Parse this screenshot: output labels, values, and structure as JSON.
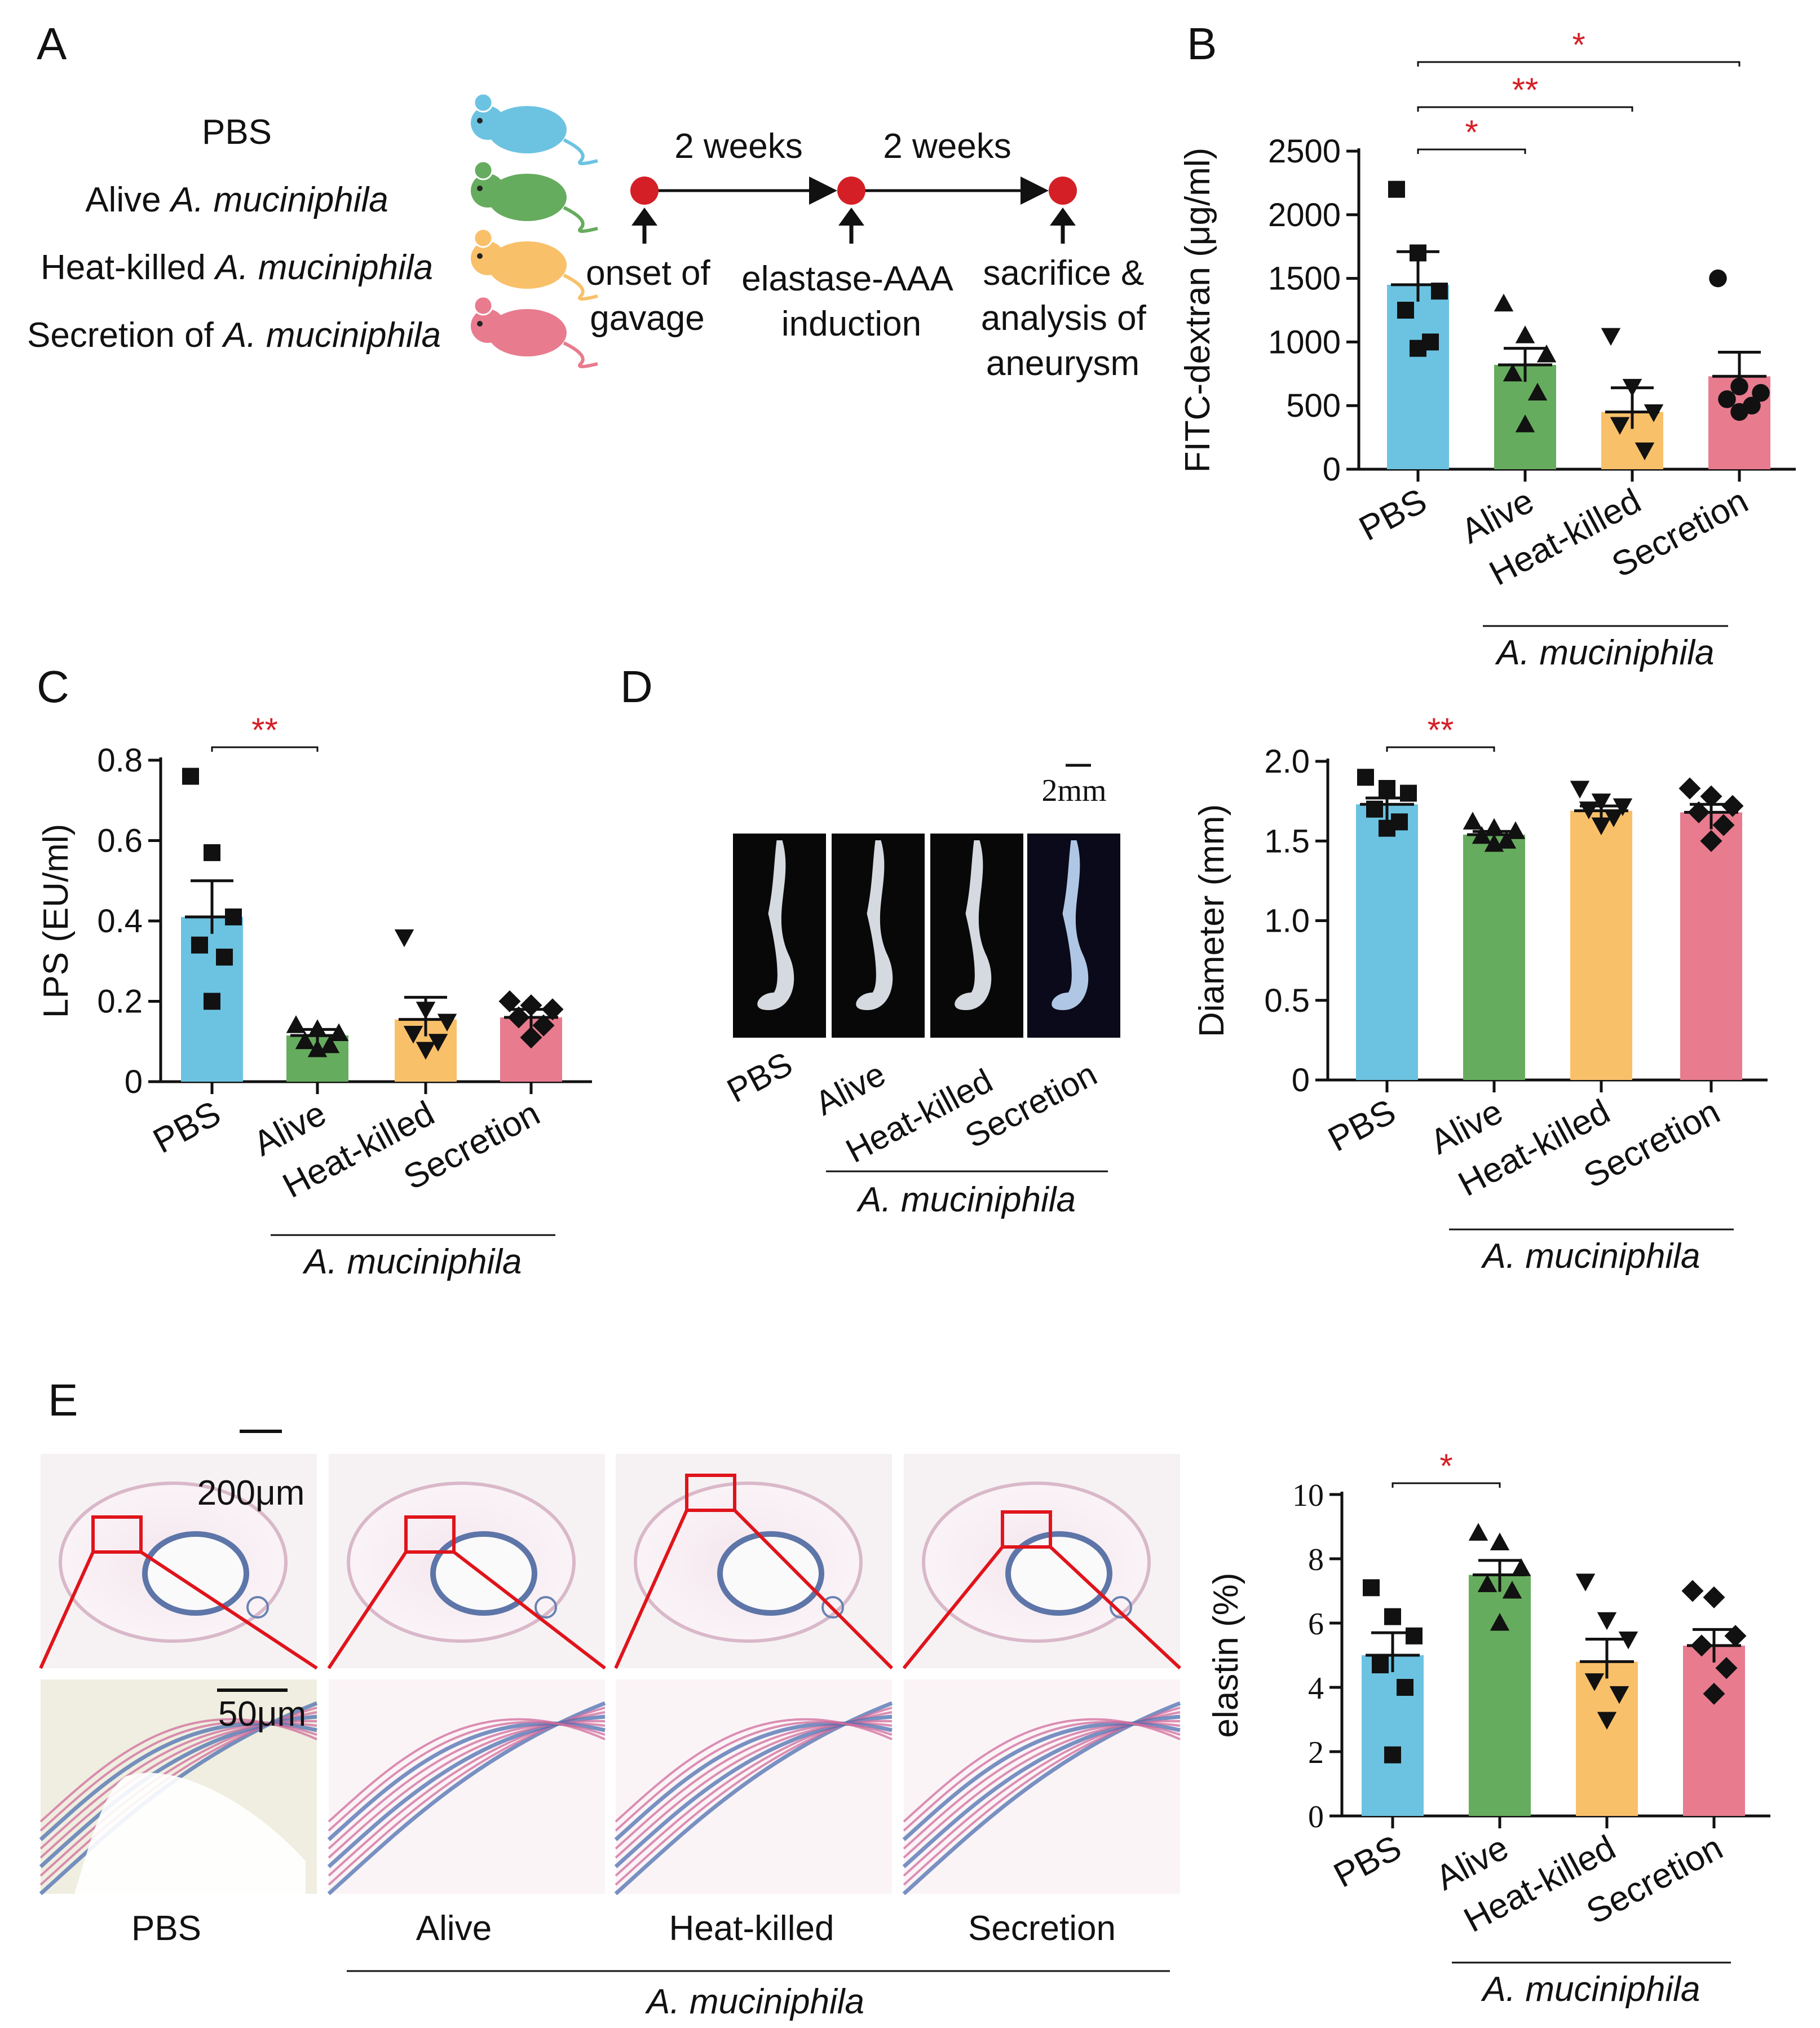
{
  "panel_labels": {
    "a": "A",
    "b": "B",
    "c": "C",
    "d": "D",
    "e": "E"
  },
  "colors": {
    "PBS": "#6cc3e1",
    "Alive": "#66ac5e",
    "Heat-killed": "#f9c06a",
    "Secretion": "#e87b8e",
    "sig": "#d51f26",
    "dot": "#111111"
  },
  "groups": [
    "PBS",
    "Alive",
    "Heat-killed",
    "Secretion"
  ],
  "species": "A. muciniphila",
  "panel_a": {
    "groups": [
      {
        "label": "PBS",
        "plain": "PBS",
        "italic": "",
        "color": "#6cc3e1"
      },
      {
        "label": "Alive A. muciniphila",
        "plain": "Alive ",
        "italic": "A. muciniphila",
        "color": "#66ac5e"
      },
      {
        "label": "Heat-killed A. muciniphila",
        "plain": "Heat-killed ",
        "italic": "A. muciniphila",
        "color": "#f9c06a"
      },
      {
        "label": "Secretion of A. muciniphila",
        "plain": "Secretion of ",
        "italic": "A. muciniphila",
        "color": "#e87b8e"
      }
    ],
    "intervals": [
      "2 weeks",
      "2 weeks"
    ],
    "steps": [
      {
        "lines": [
          "onset of",
          "gavage"
        ]
      },
      {
        "lines": [
          "elastase-AAA",
          "induction"
        ]
      },
      {
        "lines": [
          "sacrifice &",
          "analysis of",
          "aneurysm"
        ]
      }
    ]
  },
  "panel_d_images": {
    "scale": "2mm"
  },
  "panel_e_images": {
    "scale_top": "200μm",
    "scale_bottom": "50μm",
    "labels": [
      "PBS",
      "Alive",
      "Heat-killed",
      "Secretion"
    ]
  },
  "chart_data": [
    {
      "id": "B",
      "type": "bar",
      "ylabel": "FITC-dextran (μg/ml)",
      "categories": [
        "PBS",
        "Alive",
        "Heat-killed",
        "Secretion"
      ],
      "values": [
        1450,
        820,
        450,
        730
      ],
      "sem": [
        260,
        130,
        190,
        190
      ],
      "points": [
        [
          2200,
          1700,
          1400,
          1250,
          1000,
          950
        ],
        [
          1300,
          1050,
          900,
          750,
          600,
          350
        ],
        [
          1050,
          650,
          450,
          350,
          150
        ],
        [
          1500,
          650,
          600,
          550,
          500,
          450
        ]
      ],
      "markers": [
        "square",
        "triangle",
        "triangle-down",
        "circle"
      ],
      "ylim": [
        0,
        2500
      ],
      "yticks": [
        "0",
        "500",
        "1000",
        "1500",
        "2000",
        "2500"
      ],
      "yticks_v": [
        0,
        500,
        1000,
        1500,
        2000,
        2500
      ],
      "comparisons": [
        {
          "from": 0,
          "to": 1,
          "label": "*"
        },
        {
          "from": 0,
          "to": 2,
          "label": "**"
        },
        {
          "from": 0,
          "to": 3,
          "label": "*"
        }
      ],
      "group_label": "A. muciniphila"
    },
    {
      "id": "C",
      "type": "bar",
      "ylabel": "LPS (EU/ml)",
      "categories": [
        "PBS",
        "Alive",
        "Heat-killed",
        "Secretion"
      ],
      "values": [
        0.41,
        0.115,
        0.155,
        0.16
      ],
      "sem": [
        0.09,
        0.015,
        0.055,
        0.02
      ],
      "points": [
        [
          0.76,
          0.57,
          0.41,
          0.34,
          0.31,
          0.2
        ],
        [
          0.14,
          0.13,
          0.12,
          0.1,
          0.09,
          0.08
        ],
        [
          0.36,
          0.18,
          0.15,
          0.12,
          0.1,
          0.08
        ],
        [
          0.2,
          0.19,
          0.18,
          0.16,
          0.14,
          0.11
        ]
      ],
      "markers": [
        "square",
        "triangle",
        "triangle-down",
        "diamond"
      ],
      "ylim": [
        0,
        0.8
      ],
      "yticks": [
        "0",
        "0.2",
        "0.4",
        "0.6",
        "0.8"
      ],
      "yticks_v": [
        0,
        0.2,
        0.4,
        0.6,
        0.8
      ],
      "comparisons": [
        {
          "from": 0,
          "to": 1,
          "label": "**"
        }
      ],
      "group_label": "A. muciniphila"
    },
    {
      "id": "D",
      "type": "bar",
      "ylabel": "Diameter (mm)",
      "categories": [
        "PBS",
        "Alive",
        "Heat-killed",
        "Secretion"
      ],
      "values": [
        1.73,
        1.54,
        1.69,
        1.68
      ],
      "sem": [
        0.04,
        0.02,
        0.03,
        0.05
      ],
      "points": [
        [
          1.9,
          1.83,
          1.8,
          1.7,
          1.62,
          1.58
        ],
        [
          1.62,
          1.58,
          1.56,
          1.53,
          1.5,
          1.48
        ],
        [
          1.83,
          1.75,
          1.72,
          1.7,
          1.65,
          1.6
        ],
        [
          1.83,
          1.78,
          1.72,
          1.68,
          1.6,
          1.5
        ]
      ],
      "markers": [
        "square",
        "triangle",
        "triangle-down",
        "diamond"
      ],
      "ylim": [
        0,
        2.0
      ],
      "yticks": [
        "0",
        "0.5",
        "1.0",
        "1.5",
        "2.0"
      ],
      "yticks_v": [
        0,
        0.5,
        1.0,
        1.5,
        2.0
      ],
      "comparisons": [
        {
          "from": 0,
          "to": 1,
          "label": "**"
        }
      ],
      "group_label": "A. muciniphila"
    },
    {
      "id": "E",
      "type": "bar",
      "ylabel": "elastin (%)",
      "categories": [
        "PBS",
        "Alive",
        "Heat-killed",
        "Secretion"
      ],
      "values": [
        5.0,
        7.5,
        4.8,
        5.3
      ],
      "sem": [
        0.7,
        0.45,
        0.7,
        0.5
      ],
      "points": [
        [
          7.1,
          6.2,
          5.6,
          4.7,
          4.0,
          1.9
        ],
        [
          8.8,
          8.5,
          7.7,
          7.2,
          7.0,
          6.0
        ],
        [
          7.3,
          6.1,
          5.5,
          4.2,
          3.8,
          3.0
        ],
        [
          7.0,
          6.8,
          5.6,
          5.3,
          4.6,
          3.8
        ]
      ],
      "markers": [
        "square",
        "triangle",
        "triangle-down",
        "diamond"
      ],
      "ylim": [
        0,
        10
      ],
      "yticks": [
        "0",
        "2",
        "4",
        "6",
        "8",
        "10"
      ],
      "yticks_v": [
        0,
        2,
        4,
        6,
        8,
        10
      ],
      "comparisons": [
        {
          "from": 0,
          "to": 1,
          "label": "*"
        }
      ],
      "group_label": "A. muciniphila"
    }
  ]
}
